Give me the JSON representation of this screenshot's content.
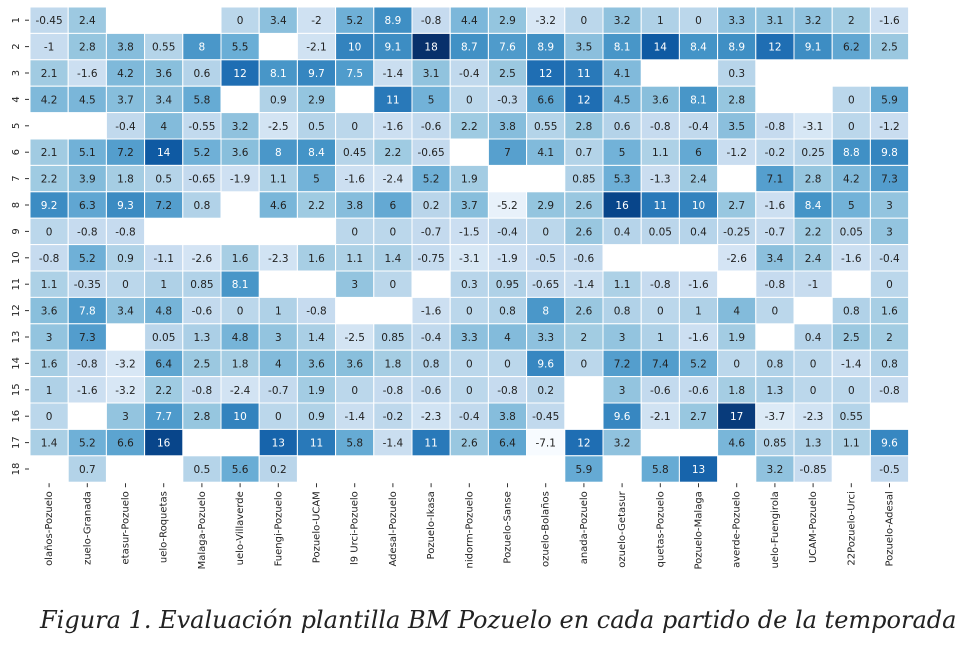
{
  "caption": "Figura 1. Evaluación plantilla BM Pozuelo en cada partido de la temporada",
  "chart_data": {
    "type": "heatmap",
    "rows": [
      "1",
      "2",
      "3",
      "4",
      "5",
      "6",
      "7",
      "8",
      "9",
      "10",
      "11",
      "12",
      "13",
      "14",
      "15",
      "16",
      "17",
      "18"
    ],
    "columns": [
      "olaños-Pozuelo",
      "zuelo-Granada",
      "etasur-Pozuelo",
      "uelo-Roquetas",
      "Malaga-Pozuelo",
      "uelo-Villaverde",
      "Fuengi-Pozuelo",
      "Pozuelo-UCAM",
      "l9 Urci-Pozuelo",
      "Adesal-Pozuelo",
      "Pozuelo-Ikasa",
      "nidorm-Pozuelo",
      "Pozuelo-Sanse",
      "ozuelo-Bolaños",
      "anada-Pozuelo",
      "ozuelo-Getasur",
      "quetas-Pozuelo",
      "Pozuelo-Malaga",
      "averde-Pozuelo",
      "uelo-Fuengirola",
      "UCAM-Pozuelo",
      "22Pozuelo-Urci",
      "Pozuelo-Adesal"
    ],
    "values": [
      [
        "-0.45",
        "2.4",
        null,
        null,
        null,
        "0",
        "3.4",
        "-2",
        "5.2",
        "8.9",
        "-0.8",
        "4.4",
        "2.9",
        "-3.2",
        "0",
        "3.2",
        "1",
        "0",
        "3.3",
        "3.1",
        "3.2",
        "2",
        "-1.6"
      ],
      [
        "-1",
        "2.8",
        "3.8",
        "0.55",
        "8",
        "5.5",
        null,
        "-2.1",
        "10",
        "9.1",
        "18",
        "8.7",
        "7.6",
        "8.9",
        "3.5",
        "8.1",
        "14",
        "8.4",
        "8.9",
        "12",
        "9.1",
        "6.2",
        "2.5"
      ],
      [
        "2.1",
        "-1.6",
        "4.2",
        "3.6",
        "0.6",
        "12",
        "8.1",
        "9.7",
        "7.5",
        "-1.4",
        "3.1",
        "-0.4",
        "2.5",
        "12",
        "11",
        "4.1",
        null,
        null,
        "0.3",
        null,
        null,
        null,
        null
      ],
      [
        "4.2",
        "4.5",
        "3.7",
        "3.4",
        "5.8",
        null,
        "0.9",
        "2.9",
        null,
        "11",
        "5",
        "0",
        "-0.3",
        "6.6",
        "12",
        "4.5",
        "3.6",
        "8.1",
        "2.8",
        null,
        null,
        "0",
        "5.9"
      ],
      [
        null,
        null,
        "-0.4",
        "4",
        "-0.55",
        "3.2",
        "-2.5",
        "0.5",
        "0",
        "-1.6",
        "-0.6",
        "2.2",
        "3.8",
        "0.55",
        "2.8",
        "0.6",
        "-0.8",
        "-0.4",
        "3.5",
        "-0.8",
        "-3.1",
        "0",
        "-1.2"
      ],
      [
        "2.1",
        "5.1",
        "7.2",
        "14",
        "5.2",
        "3.6",
        "8",
        "8.4",
        "0.45",
        "2.2",
        "-0.65",
        null,
        "7",
        "4.1",
        "0.7",
        "5",
        "1.1",
        "6",
        "-1.2",
        "-0.2",
        "0.25",
        "8.8",
        "9.8"
      ],
      [
        "2.2",
        "3.9",
        "1.8",
        "0.5",
        "-0.65",
        "-1.9",
        "1.1",
        "5",
        "-1.6",
        "-2.4",
        "5.2",
        "1.9",
        null,
        null,
        "0.85",
        "5.3",
        "-1.3",
        "2.4",
        null,
        "7.1",
        "2.8",
        "4.2",
        "7.3"
      ],
      [
        "9.2",
        "6.3",
        "9.3",
        "7.2",
        "0.8",
        null,
        "4.6",
        "2.2",
        "3.8",
        "6",
        "0.2",
        "3.7",
        "-5.2",
        "2.9",
        "2.6",
        "16",
        "11",
        "10",
        "2.7",
        "-1.6",
        "8.4",
        "5",
        "3"
      ],
      [
        "0",
        "-0.8",
        "-0.8",
        null,
        null,
        null,
        null,
        null,
        "0",
        "0",
        "-0.7",
        "-1.5",
        "-0.4",
        "0",
        "2.6",
        "0.4",
        "0.05",
        "0.4",
        "-0.25",
        "-0.7",
        "2.2",
        "0.05",
        "3"
      ],
      [
        "-0.8",
        "5.2",
        "0.9",
        "-1.1",
        "-2.6",
        "1.6",
        "-2.3",
        "1.6",
        "1.1",
        "1.4",
        "-0.75",
        "-3.1",
        "-1.9",
        "-0.5",
        "-0.6",
        null,
        null,
        null,
        "-2.6",
        "3.4",
        "2.4",
        "-1.6",
        "-0.4"
      ],
      [
        "1.1",
        "-0.35",
        "0",
        "1",
        "0.85",
        "8.1",
        null,
        null,
        "3",
        "0",
        null,
        "0.3",
        "0.95",
        "-0.65",
        "-1.4",
        "1.1",
        "-0.8",
        "-1.6",
        null,
        "-0.8",
        "-1",
        null,
        "0"
      ],
      [
        "3.6",
        "7.8",
        "3.4",
        "4.8",
        "-0.6",
        "0",
        "1",
        "-0.8",
        null,
        null,
        "-1.6",
        "0",
        "0.8",
        "8",
        "2.6",
        "0.8",
        "0",
        "1",
        "4",
        "0",
        null,
        "0.8",
        "1.6"
      ],
      [
        "3",
        "7.3",
        null,
        "0.05",
        "1.3",
        "4.8",
        "3",
        "1.4",
        "-2.5",
        "0.85",
        "-0.4",
        "3.3",
        "4",
        "3.3",
        "2",
        "3",
        "1",
        "-1.6",
        "1.9",
        null,
        "0.4",
        "2.5",
        "2"
      ],
      [
        "1.6",
        "-0.8",
        "-3.2",
        "6.4",
        "2.5",
        "1.8",
        "4",
        "3.6",
        "3.6",
        "1.8",
        "0.8",
        "0",
        "0",
        "9.6",
        "0",
        "7.2",
        "7.4",
        "5.2",
        "0",
        "0.8",
        "0",
        "-1.4",
        "0.8"
      ],
      [
        "1",
        "-1.6",
        "-3.2",
        "2.2",
        "-0.8",
        "-2.4",
        "-0.7",
        "1.9",
        "0",
        "-0.8",
        "-0.6",
        "0",
        "-0.8",
        "0.2",
        null,
        "3",
        "-0.6",
        "-0.6",
        "1.8",
        "1.3",
        "0",
        "0",
        "-0.8"
      ],
      [
        "0",
        null,
        "3",
        "7.7",
        "2.8",
        "10",
        "0",
        "0.9",
        "-1.4",
        "-0.2",
        "-2.3",
        "-0.4",
        "3.8",
        "-0.45",
        null,
        "9.6",
        "-2.1",
        "2.7",
        "17",
        "-3.7",
        "-2.3",
        "0.55",
        null
      ],
      [
        "1.4",
        "5.2",
        "6.6",
        "16",
        null,
        null,
        "13",
        "11",
        "5.8",
        "-1.4",
        "11",
        "2.6",
        "6.4",
        "-7.1",
        "12",
        "3.2",
        null,
        null,
        "4.6",
        "0.85",
        "1.3",
        "1.1",
        "9.6"
      ],
      [
        null,
        "0.7",
        null,
        null,
        "0.5",
        "5.6",
        "0.2",
        null,
        null,
        null,
        null,
        null,
        null,
        null,
        "5.9",
        null,
        "5.8",
        "13",
        null,
        "3.2",
        "-0.85",
        null,
        "-0.5"
      ]
    ],
    "colormap": "Blues",
    "color_range": [
      -7.1,
      18
    ],
    "colorbar": false,
    "grid_line_color": "#ffffff"
  }
}
